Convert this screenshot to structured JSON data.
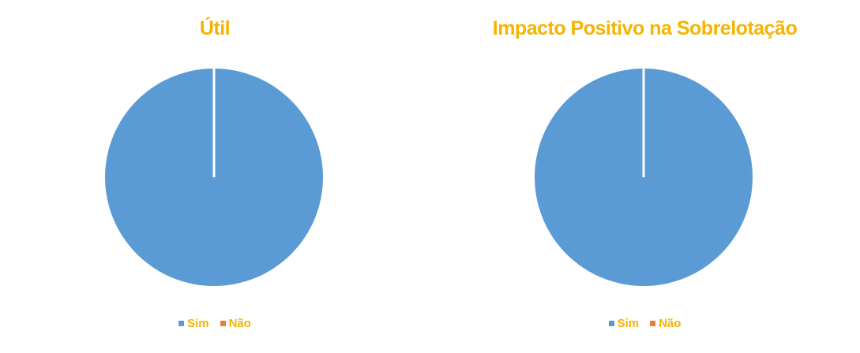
{
  "colors": {
    "text": "#F5B400",
    "series": [
      "#5B9BD5",
      "#ED7D31"
    ],
    "separator": "#FFFFFF"
  },
  "chart_data": [
    {
      "type": "pie",
      "title": "Útil",
      "categories": [
        "Sim",
        "Não"
      ],
      "values": [
        100,
        0
      ],
      "legend_position": "bottom"
    },
    {
      "type": "pie",
      "title": "Impacto Positivo na Sobrelotação",
      "categories": [
        "Sim",
        "Não"
      ],
      "values": [
        100,
        0
      ],
      "legend_position": "bottom"
    }
  ]
}
